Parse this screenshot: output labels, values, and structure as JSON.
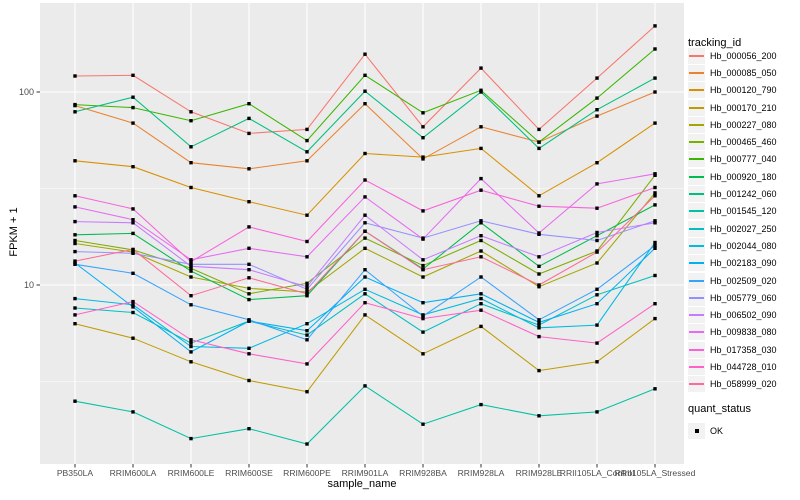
{
  "figure": {
    "background": "#FFFFFF",
    "panel_bg": "#EBEBEB",
    "grid_color": "#FFFFFF",
    "axis_text_color": "#4D4D4D",
    "axis_title_color": "#000000",
    "legend_key_bg": "#F2F2F2",
    "point_color": "#000000"
  },
  "chart_data": {
    "type": "line",
    "title": "",
    "xlabel": "sample_name",
    "ylabel": "FPKM + 1",
    "y_scale": "log10",
    "y_major_ticks": [
      100,
      10
    ],
    "y_tick_labels": [
      "100",
      "10"
    ],
    "y_minor_ticks": [
      31.62,
      3.162
    ],
    "ylim": [
      1.2,
      290
    ],
    "grid": true,
    "legend_position": "right",
    "legend_title": "tracking_id",
    "point_shape": "square",
    "categories": [
      "PB350LA",
      "RRIM600LA",
      "RRIM600LE",
      "RRIM600SE",
      "RRIM600PE",
      "RRIM901LA",
      "RRIM928BA",
      "RRIM928LA",
      "RRIM928LE",
      "RRII105LA_Control",
      "RRII105LA_Stressed"
    ],
    "series": [
      {
        "name": "Hb_000056_200",
        "color": "#F8766D",
        "values": [
          121,
          122,
          79,
          61,
          64,
          157,
          66,
          133,
          64,
          118,
          220
        ]
      },
      {
        "name": "Hb_000085_050",
        "color": "#EA8331",
        "values": [
          85,
          69,
          43,
          40,
          44,
          87,
          45,
          66,
          55,
          75,
          100
        ]
      },
      {
        "name": "Hb_000120_790",
        "color": "#D89000",
        "values": [
          44,
          41,
          32,
          27,
          23,
          48,
          46,
          51,
          29,
          43,
          69
        ]
      },
      {
        "name": "Hb_000170_210",
        "color": "#C09B00",
        "values": [
          6.3,
          5.3,
          4.0,
          3.2,
          2.8,
          7.0,
          4.4,
          6.1,
          3.6,
          4.0,
          6.7
        ]
      },
      {
        "name": "Hb_000227_080",
        "color": "#A3A500",
        "values": [
          16.4,
          14.8,
          11.0,
          9.6,
          9.2,
          15.5,
          11.0,
          15.0,
          9.8,
          13.0,
          30.0
        ]
      },
      {
        "name": "Hb_000465_460",
        "color": "#7CAE00",
        "values": [
          17.0,
          15.2,
          12.2,
          9.0,
          10.2,
          17.5,
          12.6,
          17.0,
          11.4,
          15.0,
          37.0
        ]
      },
      {
        "name": "Hb_000777_040",
        "color": "#39B600",
        "values": [
          86,
          83,
          71,
          87,
          56,
          122,
          78,
          102,
          55,
          93,
          167
        ]
      },
      {
        "name": "Hb_000920_180",
        "color": "#00BB4E",
        "values": [
          18.2,
          18.5,
          11.8,
          8.4,
          8.8,
          19.0,
          12.1,
          21.0,
          12.5,
          18.0,
          26.0
        ]
      },
      {
        "name": "Hb_001242_060",
        "color": "#00BF7D",
        "values": [
          79,
          94,
          52,
          73,
          49,
          101,
          58,
          100,
          51,
          81,
          118
        ]
      },
      {
        "name": "Hb_001545_120",
        "color": "#00C1A3",
        "values": [
          2.5,
          2.2,
          1.6,
          1.8,
          1.5,
          3.0,
          1.9,
          2.4,
          2.1,
          2.2,
          2.9
        ]
      },
      {
        "name": "Hb_002027_250",
        "color": "#00BFC4",
        "values": [
          7.6,
          7.2,
          5.0,
          6.5,
          5.5,
          9.0,
          5.7,
          8.0,
          6.2,
          8.9,
          11.2
        ]
      },
      {
        "name": "Hb_002044_080",
        "color": "#00BAE0",
        "values": [
          8.5,
          7.9,
          4.8,
          4.7,
          6.3,
          9.5,
          7.0,
          8.5,
          6.0,
          6.2,
          16.6
        ]
      },
      {
        "name": "Hb_002183_090",
        "color": "#00B0F6",
        "values": [
          13.0,
          7.7,
          4.5,
          6.5,
          5.8,
          11.0,
          8.1,
          9.0,
          6.4,
          8.0,
          15.5
        ]
      },
      {
        "name": "Hb_002509_020",
        "color": "#35A2FF",
        "values": [
          12.8,
          11.5,
          7.9,
          6.6,
          5.2,
          12.0,
          6.9,
          11.0,
          6.6,
          9.5,
          16.0
        ]
      },
      {
        "name": "Hb_005779_060",
        "color": "#9590FF",
        "values": [
          14.9,
          14.6,
          12.8,
          12.8,
          9.5,
          21.0,
          17.5,
          21.5,
          18.3,
          17.0,
          21.5
        ]
      },
      {
        "name": "Hb_006502_090",
        "color": "#C77CFF",
        "values": [
          21.3,
          21.0,
          12.5,
          12.0,
          9.8,
          23.0,
          13.5,
          18.0,
          14.0,
          18.7,
          21.0
        ]
      },
      {
        "name": "Hb_009838_080",
        "color": "#E76BF3",
        "values": [
          25.4,
          21.8,
          13.5,
          15.5,
          14.0,
          28.6,
          17.3,
          35.6,
          18.6,
          33.4,
          37.7
        ]
      },
      {
        "name": "Hb_017358_030",
        "color": "#FA62DB",
        "values": [
          29.0,
          24.8,
          13.2,
          20.0,
          16.8,
          35.0,
          24.2,
          31.0,
          25.6,
          25.0,
          32.0
        ]
      },
      {
        "name": "Hb_044728_010",
        "color": "#FF61C9",
        "values": [
          7.0,
          8.2,
          5.2,
          4.4,
          3.9,
          8.1,
          6.7,
          7.4,
          5.4,
          5.0,
          8.0
        ]
      },
      {
        "name": "Hb_058999_020",
        "color": "#FF6A98",
        "values": [
          13.3,
          15.3,
          8.8,
          10.9,
          9.0,
          19.0,
          12.0,
          14.0,
          10.0,
          14.8,
          29.0
        ]
      }
    ],
    "point_legend": {
      "title": "quant_status",
      "items": [
        {
          "label": "OK",
          "shape": "square"
        }
      ]
    }
  }
}
